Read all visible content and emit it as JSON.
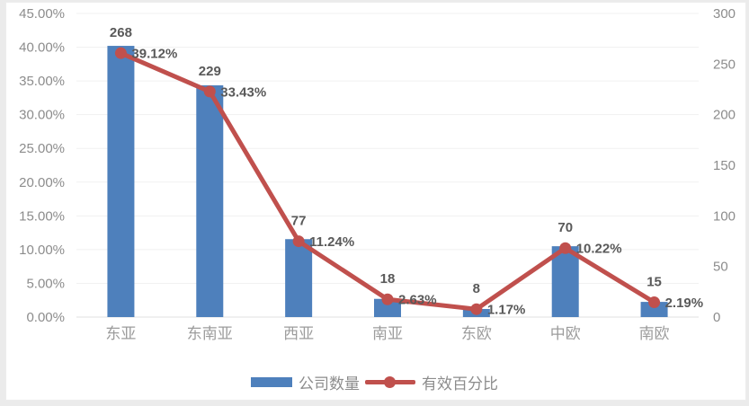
{
  "colors": {
    "bar": "#4E80BC",
    "line": "#C0504D",
    "data_label": "#595959",
    "axis_text": "#8C8C8C",
    "grid": "#F1F1F1",
    "axis_line": "#E2E2E2"
  },
  "chart_data": {
    "type": "bar",
    "subtype": "bar-line-combo",
    "title": "",
    "categories": [
      "东亚",
      "东南亚",
      "西亚",
      "南亚",
      "东欧",
      "中欧",
      "南欧"
    ],
    "series": [
      {
        "name": "公司数量",
        "type": "bar",
        "axis": "right",
        "values": [
          268,
          229,
          77,
          18,
          8,
          70,
          15
        ],
        "color": "#4E80BC"
      },
      {
        "name": "有效百分比",
        "type": "line",
        "axis": "left",
        "values": [
          39.12,
          33.43,
          11.24,
          2.63,
          1.17,
          10.22,
          2.19
        ],
        "labels": [
          "39.12%",
          "33.43%",
          "11.24%",
          "2.63%",
          "1.17%",
          "10.22%",
          "2.19%"
        ],
        "color": "#C0504D"
      }
    ],
    "left_axis": {
      "min": 0,
      "max": 45,
      "ticks": [
        "45.00%",
        "40.00%",
        "35.00%",
        "30.00%",
        "25.00%",
        "20.00%",
        "15.00%",
        "10.00%",
        "5.00%",
        "0.00%"
      ]
    },
    "right_axis": {
      "min": 0,
      "max": 300,
      "ticks": [
        "300",
        "250",
        "200",
        "150",
        "100",
        "50",
        "0"
      ]
    },
    "grid": "horizontal",
    "legend_position": "bottom",
    "legend": [
      {
        "label": "公司数量",
        "swatch": "bar"
      },
      {
        "label": "有效百分比",
        "swatch": "line"
      }
    ]
  }
}
